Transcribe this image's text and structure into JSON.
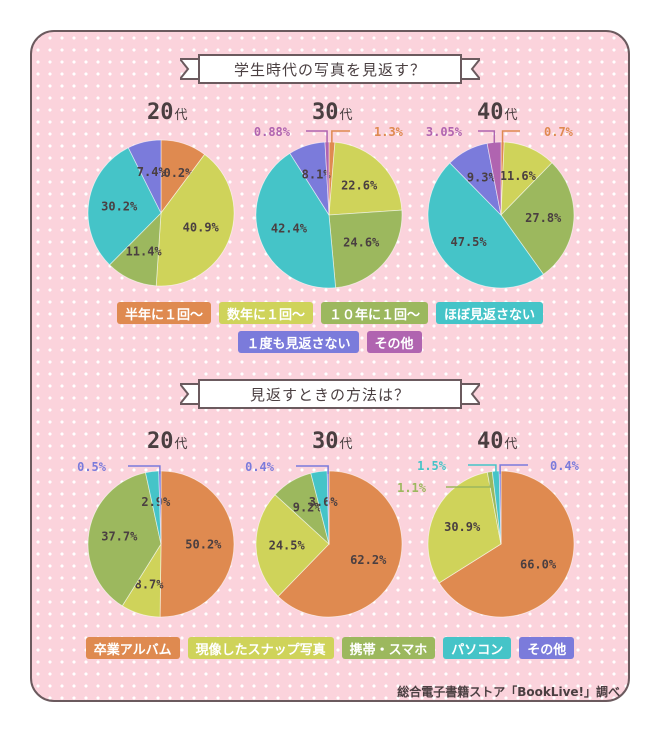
{
  "section1": {
    "title": "学生時代の写真を見返す？",
    "legend": [
      {
        "label": "半年に１回〜",
        "color": "#df8a50"
      },
      {
        "label": "数年に１回〜",
        "color": "#cfd35a"
      },
      {
        "label": "１０年に１回〜",
        "color": "#9cb85e"
      },
      {
        "label": "ほぼ見返さない",
        "color": "#45c4c8"
      },
      {
        "label": "１度も見返さない",
        "color": "#7b7bdb"
      },
      {
        "label": "その他",
        "color": "#b064b0"
      }
    ]
  },
  "section2": {
    "title": "見返すときの方法は？",
    "legend": [
      {
        "label": "卒業アルバム",
        "color": "#df8a50"
      },
      {
        "label": "現像したスナップ写真",
        "color": "#cfd35a"
      },
      {
        "label": "携帯・スマホ",
        "color": "#9cb85e"
      },
      {
        "label": "パソコン",
        "color": "#45c4c8"
      },
      {
        "label": "その他",
        "color": "#7b7bdb"
      }
    ]
  },
  "decade_unit": "代",
  "credit": "総合電子書籍ストア「BookLive!」調べ",
  "chart_data": [
    {
      "type": "pie",
      "group": "section1",
      "decade": "20",
      "slices": [
        {
          "category": "半年に１回〜",
          "value": 10.2,
          "label": "10.2",
          "color": "#df8a50"
        },
        {
          "category": "数年に１回〜",
          "value": 40.9,
          "label": "40.9",
          "color": "#cfd35a"
        },
        {
          "category": "１０年に１回〜",
          "value": 11.4,
          "label": "11.4",
          "color": "#9cb85e"
        },
        {
          "category": "ほぼ見返さない",
          "value": 30.2,
          "label": "30.2",
          "color": "#45c4c8"
        },
        {
          "category": "１度も見返さない",
          "value": 7.4,
          "label": "7.4",
          "color": "#7b7bdb"
        }
      ]
    },
    {
      "type": "pie",
      "group": "section1",
      "decade": "30",
      "slices": [
        {
          "category": "半年に１回〜",
          "value": 1.3,
          "label": "1.3",
          "color": "#df8a50"
        },
        {
          "category": "数年に１回〜",
          "value": 22.6,
          "label": "22.6",
          "color": "#cfd35a"
        },
        {
          "category": "１０年に１回〜",
          "value": 24.6,
          "label": "24.6",
          "color": "#9cb85e"
        },
        {
          "category": "ほぼ見返さない",
          "value": 42.4,
          "label": "42.4",
          "color": "#45c4c8"
        },
        {
          "category": "１度も見返さない",
          "value": 8.1,
          "label": "8.1",
          "color": "#7b7bdb"
        },
        {
          "category": "その他",
          "value": 0.88,
          "label": "0.88",
          "color": "#b064b0"
        }
      ]
    },
    {
      "type": "pie",
      "group": "section1",
      "decade": "40",
      "slices": [
        {
          "category": "半年に１回〜",
          "value": 0.7,
          "label": "0.7",
          "color": "#df8a50"
        },
        {
          "category": "数年に１回〜",
          "value": 11.6,
          "label": "11.6",
          "color": "#cfd35a"
        },
        {
          "category": "１０年に１回〜",
          "value": 27.8,
          "label": "27.8",
          "color": "#9cb85e"
        },
        {
          "category": "ほぼ見返さない",
          "value": 47.5,
          "label": "47.5",
          "color": "#45c4c8"
        },
        {
          "category": "１度も見返さない",
          "value": 9.3,
          "label": "9.3",
          "color": "#7b7bdb"
        },
        {
          "category": "その他",
          "value": 3.05,
          "label": "3.05",
          "color": "#b064b0"
        }
      ]
    },
    {
      "type": "pie",
      "group": "section2",
      "decade": "20",
      "slices": [
        {
          "category": "卒業アルバム",
          "value": 50.2,
          "label": "50.2",
          "color": "#df8a50"
        },
        {
          "category": "現像したスナップ写真",
          "value": 8.7,
          "label": "8.7",
          "color": "#cfd35a"
        },
        {
          "category": "携帯・スマホ",
          "value": 37.7,
          "label": "37.7",
          "color": "#9cb85e"
        },
        {
          "category": "パソコン",
          "value": 2.9,
          "label": "2.9",
          "color": "#45c4c8"
        },
        {
          "category": "その他",
          "value": 0.5,
          "label": "0.5",
          "color": "#7b7bdb"
        }
      ]
    },
    {
      "type": "pie",
      "group": "section2",
      "decade": "30",
      "slices": [
        {
          "category": "卒業アルバム",
          "value": 62.2,
          "label": "62.2",
          "color": "#df8a50"
        },
        {
          "category": "現像したスナップ写真",
          "value": 24.5,
          "label": "24.5",
          "color": "#cfd35a"
        },
        {
          "category": "携帯・スマホ",
          "value": 9.2,
          "label": "9.2",
          "color": "#9cb85e"
        },
        {
          "category": "パソコン",
          "value": 3.6,
          "label": "3.6",
          "color": "#45c4c8"
        },
        {
          "category": "その他",
          "value": 0.4,
          "label": "0.4",
          "color": "#7b7bdb"
        }
      ]
    },
    {
      "type": "pie",
      "group": "section2",
      "decade": "40",
      "slices": [
        {
          "category": "卒業アルバム",
          "value": 66.0,
          "label": "66.0",
          "color": "#df8a50"
        },
        {
          "category": "現像したスナップ写真",
          "value": 30.9,
          "label": "30.9",
          "color": "#cfd35a"
        },
        {
          "category": "携帯・スマホ",
          "value": 1.1,
          "label": "1.1",
          "color": "#9cb85e"
        },
        {
          "category": "パソコン",
          "value": 1.5,
          "label": "1.5",
          "color": "#45c4c8"
        },
        {
          "category": "その他",
          "value": 0.4,
          "label": "0.4",
          "color": "#7b7bdb"
        }
      ]
    }
  ]
}
